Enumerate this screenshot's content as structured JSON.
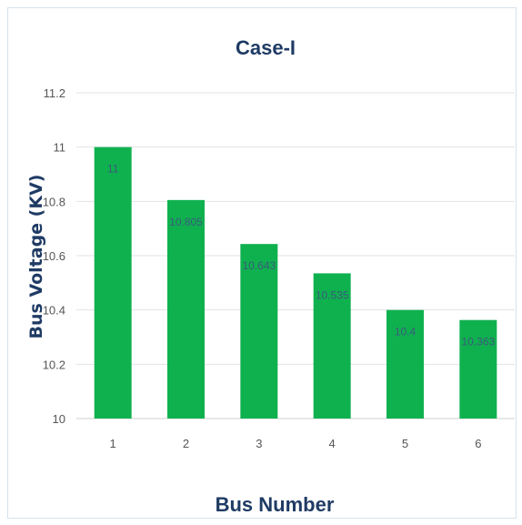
{
  "chart_data": {
    "type": "bar",
    "title": "Case-I",
    "xlabel": "Bus Number",
    "ylabel": "Bus Voltage (KV)",
    "categories": [
      "1",
      "2",
      "3",
      "4",
      "5",
      "6"
    ],
    "values": [
      11,
      10.805,
      10.643,
      10.535,
      10.4,
      10.363
    ],
    "data_labels": [
      "11",
      "10.805",
      "10.643",
      "10.535",
      "10.4",
      "10.363"
    ],
    "ylim": [
      10,
      11.2
    ],
    "yticks": [
      "10",
      "10.2",
      "10.4",
      "10.6",
      "10.8",
      "11",
      "11.2"
    ],
    "grid": true,
    "legend": "none",
    "bar_color": "#0fb14f"
  }
}
